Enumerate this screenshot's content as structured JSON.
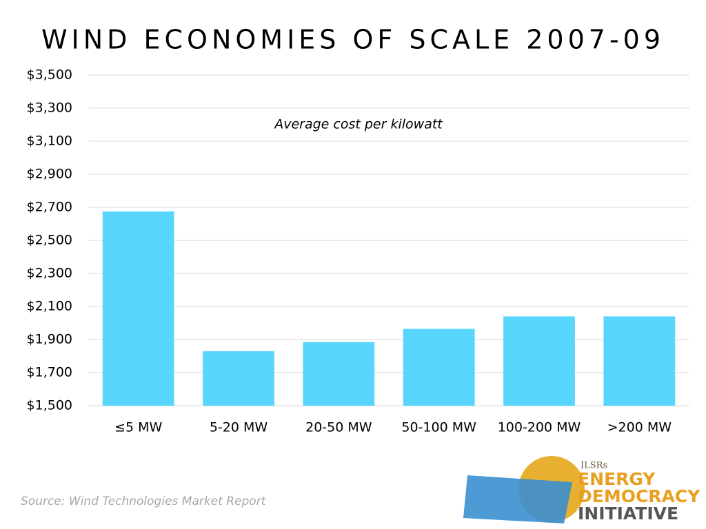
{
  "chart_data": {
    "type": "bar",
    "title": "WIND ECONOMIES OF SCALE 2007-09",
    "annotation": "Average cost per kilowatt",
    "categories": [
      "≤5 MW",
      "5-20 MW",
      "20-50 MW",
      "50-100 MW",
      "100-200 MW",
      ">200 MW"
    ],
    "values": [
      2675,
      1830,
      1885,
      1965,
      2040,
      2040
    ],
    "color": "#57d5fd",
    "ylim": [
      1500,
      3500
    ],
    "yticks": [
      {
        "value": 1500,
        "label": "$1,500"
      },
      {
        "value": 1700,
        "label": "$1,700"
      },
      {
        "value": 1900,
        "label": "$1,900"
      },
      {
        "value": 2100,
        "label": "$2,100"
      },
      {
        "value": 2300,
        "label": "$2,300"
      },
      {
        "value": 2500,
        "label": "$2,500"
      },
      {
        "value": 2700,
        "label": "$2,700"
      },
      {
        "value": 2900,
        "label": "$2,900"
      },
      {
        "value": 3100,
        "label": "$3,100"
      },
      {
        "value": 3300,
        "label": "$3,300"
      },
      {
        "value": 3500,
        "label": "$3,500"
      }
    ],
    "grid": true,
    "source": "Source: Wind Technologies Market Report"
  },
  "logo": {
    "org": "ILSRs",
    "line1": "ENERGY",
    "line2": "DEMOCRACY",
    "line3": "INITIATIVE"
  }
}
